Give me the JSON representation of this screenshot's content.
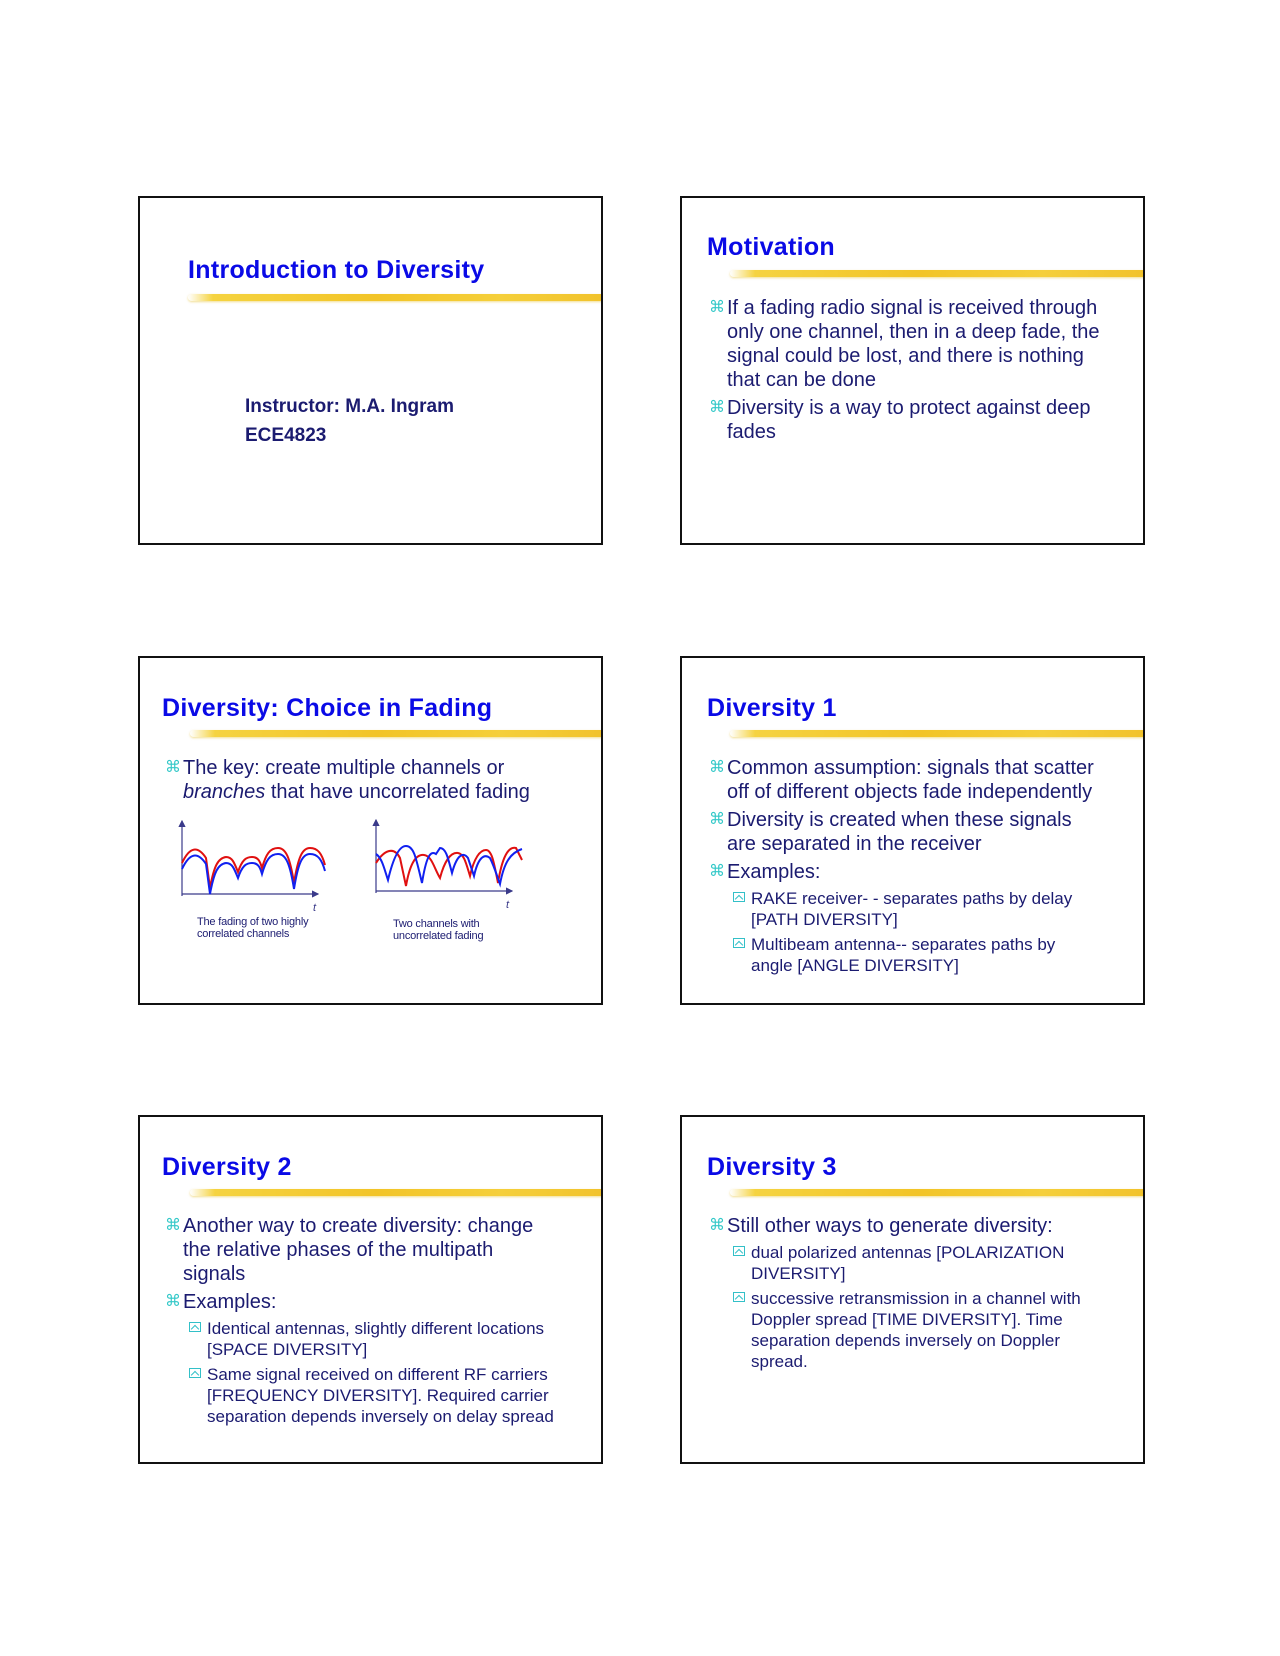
{
  "slides": [
    {
      "title": "Introduction to Diversity",
      "instructor": "Instructor: M.A. Ingram",
      "course": "ECE4823"
    },
    {
      "title": "Motivation",
      "bullets": [
        {
          "lines": [
            "If a fading radio signal is received through",
            "only one channel, then in a deep fade, the",
            "signal could be lost, and there is nothing",
            "that can be done"
          ]
        },
        {
          "lines": [
            "Diversity is a way to protect against deep",
            "fades"
          ]
        }
      ]
    },
    {
      "title": "Diversity: Choice in Fading",
      "bullet_line1": "The key: create multiple channels or",
      "bullet_line2_italic": "branches",
      "bullet_line2_rest": " that have uncorrelated fading",
      "figure_left": {
        "axis_label": "t",
        "caption": [
          "The fading of two highly",
          "correlated channels"
        ]
      },
      "figure_right": {
        "axis_label": "t",
        "caption": [
          "Two channels with",
          "uncorrelated fading"
        ]
      },
      "series_colors": {
        "channel_a": "#e01010",
        "channel_b": "#1020f0"
      }
    },
    {
      "title": "Diversity  1",
      "bullets": [
        {
          "lines": [
            "Common assumption: signals that scatter",
            "off of different objects fade independently"
          ]
        },
        {
          "lines": [
            "Diversity is created when these signals",
            "are separated in the receiver"
          ]
        },
        {
          "lines": [
            "Examples:"
          ],
          "sub": [
            {
              "lines": [
                "RAKE receiver- - separates paths by delay",
                "[PATH DIVERSITY]"
              ]
            },
            {
              "lines": [
                "Multibeam antenna--  separates paths by",
                "angle [ANGLE DIVERSITY]"
              ]
            }
          ]
        }
      ]
    },
    {
      "title": "Diversity 2",
      "bullets": [
        {
          "lines": [
            "Another way to create diversity: change",
            "the relative phases of the multipath",
            "signals"
          ]
        },
        {
          "lines": [
            "Examples:"
          ],
          "sub": [
            {
              "lines": [
                "Identical antennas, slightly different locations",
                "[SPACE DIVERSITY]"
              ]
            },
            {
              "lines": [
                "Same signal received on different RF carriers",
                "[FREQUENCY DIVERSITY].  Required carrier",
                "separation depends inversely on delay spread"
              ]
            }
          ]
        }
      ]
    },
    {
      "title": "Diversity  3",
      "bullets": [
        {
          "lines": [
            "Still other ways to generate diversity:"
          ],
          "sub": [
            {
              "lines": [
                "dual polarized antennas [POLARIZATION",
                "DIVERSITY]"
              ]
            },
            {
              "lines": [
                "successive retransmission in a channel with",
                "Doppler spread [TIME DIVERSITY]. Time",
                "separation depends inversely on Doppler",
                "spread."
              ]
            }
          ]
        }
      ]
    }
  ],
  "colors": {
    "title": "#0a0ae6",
    "text": "#1b1b70",
    "bullet": "#33c8c8",
    "highlight": "#f2c427"
  }
}
